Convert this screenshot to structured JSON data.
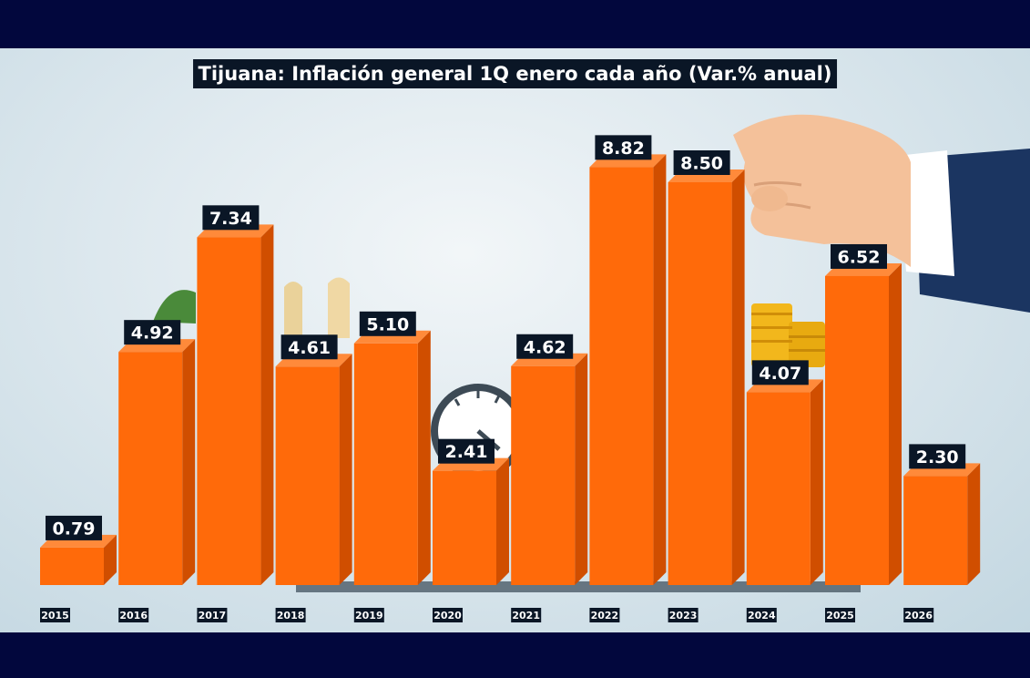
{
  "chart_data": {
    "type": "bar",
    "title": "Tijuana: Inflación general 1Q enero cada año (Var.% anual)",
    "categories": [
      "2015",
      "2016",
      "2017",
      "2018",
      "2019",
      "2020",
      "2021",
      "2022",
      "2023",
      "2024",
      "2025",
      "2026"
    ],
    "values": [
      0.79,
      4.92,
      7.34,
      4.61,
      5.1,
      2.41,
      4.62,
      8.82,
      8.5,
      4.07,
      6.52,
      2.3
    ],
    "value_labels": [
      "0.79",
      "4.92",
      "7.34",
      "4.61",
      "5.10",
      "2.41",
      "4.62",
      "8.82",
      "8.50",
      "4.07",
      "6.52",
      "2.30"
    ],
    "xlabel": "",
    "ylabel": "",
    "grid": false,
    "legend": "none",
    "colors": {
      "bar_front": "#ff6a0a",
      "bar_side": "#d04e00",
      "bar_top": "#ff8a3a",
      "label_bg": "#0a1626"
    }
  }
}
